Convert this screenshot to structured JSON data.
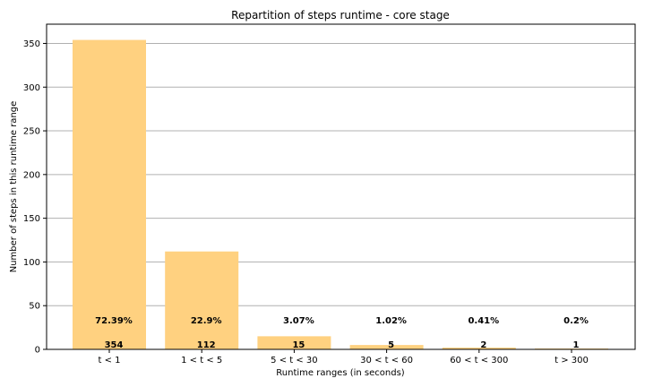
{
  "chart_data": {
    "type": "bar",
    "title": "Repartition of steps runtime - core stage",
    "xlabel": "Runtime ranges (in seconds)",
    "ylabel": "Number of steps in this runtime range",
    "categories": [
      "t < 1",
      "1 < t < 5",
      "5 < t < 30",
      "30 < t < 60",
      "60 < t < 300",
      "t > 300"
    ],
    "values": [
      354,
      112,
      15,
      5,
      2,
      1
    ],
    "percent_labels": [
      "72.39%",
      "22.9%",
      "3.07%",
      "1.02%",
      "0.41%",
      "0.2%"
    ],
    "count_labels": [
      "354",
      "112",
      "15",
      "5",
      "2",
      "1"
    ],
    "ylim": [
      0,
      372
    ],
    "yticks": [
      0,
      50,
      100,
      150,
      200,
      250,
      300,
      350
    ],
    "grid": "horizontal",
    "colors": {
      "bar": "#ffd180",
      "grid": "#b0b0b0"
    }
  }
}
